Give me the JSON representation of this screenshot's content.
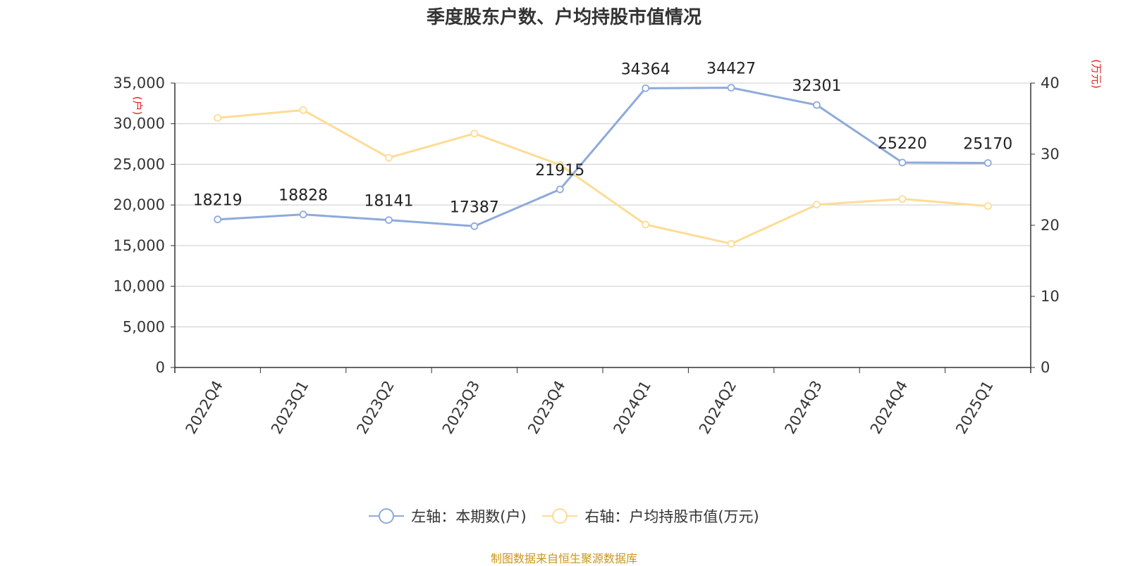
{
  "title": "季度股东户数、户均持股市值情况",
  "source": "制图数据来自恒生聚源数据库",
  "colors": {
    "left_series": "#8eaadb",
    "right_series": "#fddc95",
    "unit_label": "#e02020",
    "axis": "#333333",
    "grid": "#cccccc"
  },
  "legend": [
    {
      "label": "左轴：本期数(户)",
      "color": "#8eaadb",
      "icon": "circle-marker-icon"
    },
    {
      "label": "右轴：户均持股市值(万元)",
      "color": "#fddc95",
      "icon": "circle-marker-icon"
    }
  ],
  "chart_data": {
    "type": "line",
    "title": "季度股东户数、户均持股市值情况",
    "categories": [
      "2022Q4",
      "2023Q1",
      "2023Q2",
      "2023Q3",
      "2023Q4",
      "2024Q1",
      "2024Q2",
      "2024Q3",
      "2024Q4",
      "2025Q1"
    ],
    "y_left": {
      "unit_label": "(户)",
      "range": [
        0,
        35000
      ],
      "ticks": [
        "0",
        "5,000",
        "10,000",
        "15,000",
        "20,000",
        "25,000",
        "30,000",
        "35,000"
      ]
    },
    "y_right": {
      "unit_label": "(万元)",
      "range": [
        0,
        40
      ],
      "ticks": [
        "0",
        "10",
        "20",
        "30",
        "40"
      ]
    },
    "grid": true,
    "legend_position": "bottom",
    "series": [
      {
        "name": "左轴：本期数(户)",
        "axis": "left",
        "values": [
          18219,
          18828,
          18141,
          17387,
          21915,
          34364,
          34427,
          32301,
          25220,
          25170
        ],
        "data_labels": [
          "18219",
          "18828",
          "18141",
          "17387",
          "21915",
          "34364",
          "34427",
          "32301",
          "25220",
          "25170"
        ]
      },
      {
        "name": "右轴：户均持股市值(万元)",
        "axis": "right",
        "values": [
          35.1,
          36.2,
          29.5,
          32.9,
          28.5,
          20.1,
          17.4,
          22.9,
          23.7,
          22.7
        ]
      }
    ]
  }
}
